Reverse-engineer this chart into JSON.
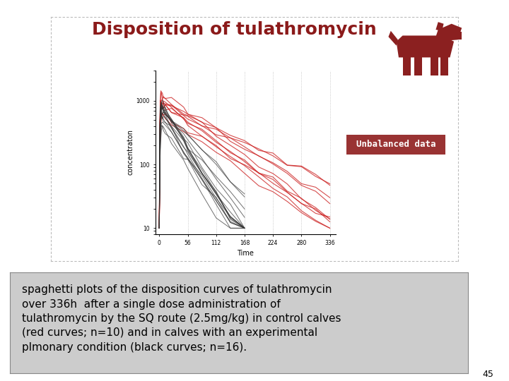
{
  "title": "Disposition of tulathromycin",
  "title_color": "#8B1A1A",
  "title_fontsize": 18,
  "bg_color": "#FFFFFF",
  "plot_bg_color": "#FFFFFF",
  "xlabel": "Time",
  "ylabel": "concentraton",
  "xlabel_fontsize": 7,
  "ylabel_fontsize": 7,
  "yticks": [
    10,
    100,
    1000
  ],
  "xticks": [
    0,
    56,
    112,
    168,
    224,
    280,
    336
  ],
  "xlim": [
    -8,
    348
  ],
  "ylim_log": [
    8,
    3000
  ],
  "unbalanced_label": "Unbalanced data",
  "unbalanced_bg": "#993333",
  "unbalanced_fg": "#FFFFFF",
  "text_box_color": "#CCCCCC",
  "text_box_edge": "#888888",
  "caption": "spaghetti plots of the disposition curves of tulathromycin\nover 336h  after a single dose administration of\ntulathromycin by the SQ route (2.5mg/kg) in control calves\n(red curves; n=10) and in calves with an experimental\nplmonary condition (black curves; n=16).",
  "caption_fontsize": 11,
  "page_number": "45",
  "red_color": "#CC2222",
  "black_color": "#333333",
  "n_red": 10,
  "n_black": 16,
  "dotted_grid_color": "#BBBBBB",
  "cow_color": "#8B2020",
  "seed": 42
}
